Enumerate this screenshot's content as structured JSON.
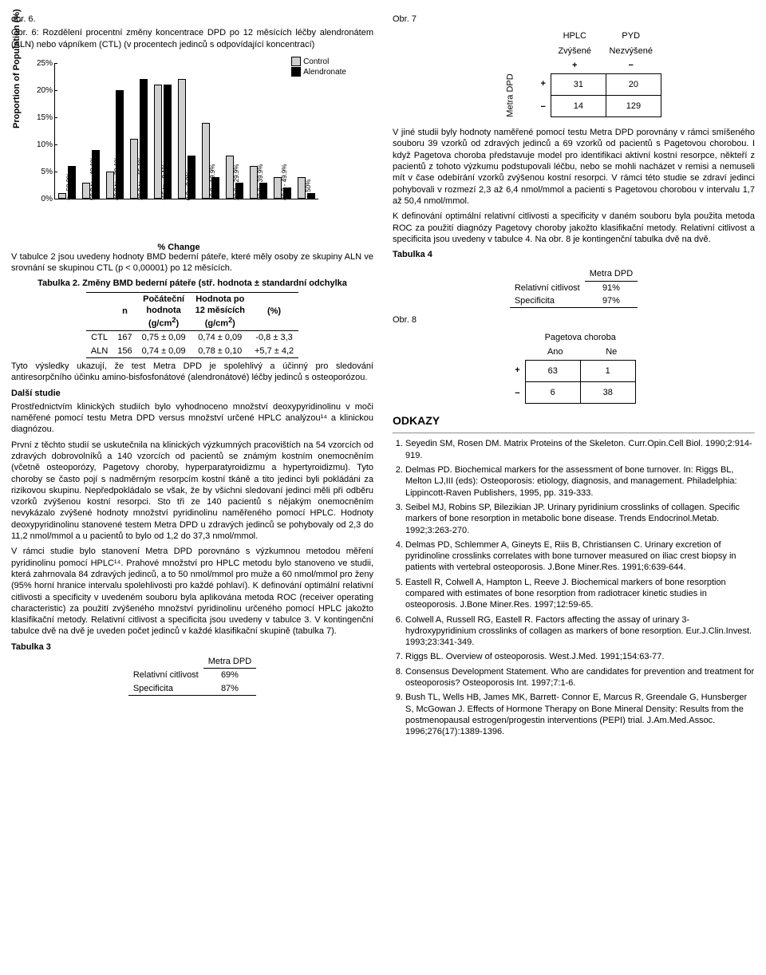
{
  "left": {
    "fig6_label": "obr. 6.",
    "fig6_caption": "Obr. 6: Rozdělení procentní změny koncentrace DPD po 12 měsících léčby alendronátem (ALN) nebo vápníkem (CTL) (v procentech jedinců s odpovídající koncentrací)",
    "chart": {
      "y_label": "Proportion of Population (%)",
      "x_label": "% Change",
      "legend_ctrl": "Control",
      "legend_aln": "Alendronate",
      "y_ticks": [
        "25%",
        "20%",
        "15%",
        "10%",
        "5%",
        "0%"
      ],
      "y_max": 25,
      "categories": [
        "< −50.0%",
        "50.0 to - 40.1%",
        "40.0 to - 30.1%",
        "30.0 to - 15.1%",
        "-15 to - 0.1%",
        "0.0 - 9.9%",
        "10.0 - 19.9%",
        "20.0 - 29.9%",
        "30.0 - 39.9%",
        "40.0 - 49.9%",
        "≥ 50%"
      ],
      "control": [
        1,
        3,
        5,
        11,
        21,
        22,
        14,
        8,
        6,
        4,
        4
      ],
      "alendronate": [
        6,
        9,
        20,
        22,
        21,
        8,
        4,
        3,
        3,
        2,
        1
      ]
    },
    "para_tab2_intro": "V tabulce 2 jsou uvedeny hodnoty BMD bederní páteře, které měly osoby ze skupiny ALN ve srovnání se skupinou CTL (p < 0,00001) po 12 měsících.",
    "tab2_title": "Tabulka 2. Změny BMD bederní páteře (stř. hodnota ± standardní odchylka",
    "tab2": {
      "head": [
        "",
        "n",
        "Počáteční hodnota (g/cm²)",
        "Hodnota po 12 měsících (g/cm²)",
        "(%)"
      ],
      "rows": [
        [
          "CTL",
          "167",
          "0,75 ± 0,09",
          "0,74 ± 0,09",
          "-0,8 ± 3,3"
        ],
        [
          "ALN",
          "156",
          "0,74 ± 0,09",
          "0,78 ± 0,10",
          "+5,7 ± 4,2"
        ]
      ]
    },
    "para_after_tab2": "Tyto výsledky ukazují, že test Metra DPD je spolehlivý a účinný pro sledování antiresorpčního účinku amino-bisfosfonátové (alendronátové) léčby jedinců s osteoporózou.",
    "h_dalsi": "Další studie",
    "para_dalsi_1": "Prostřednictvím klinických studiích bylo vyhodnoceno množství deoxypyridinolinu v moči naměřené pomocí testu Metra DPD versus množství určené HPLC analýzou¹⁴ a klinickou diagnózou.",
    "para_dalsi_2": "První z těchto studií se uskutečnila na klinických výzkumných pracovištích na 54 vzorcích od zdravých dobrovolníků a 140 vzorcích od pacientů se známým kostním onemocněním (včetně osteoporózy, Pagetovy choroby, hyperparatyroidizmu a hypertyroidizmu). Tyto choroby se často pojí s nadměrným resorpcím kostní tkáně a tito jedinci byli pokládáni za rizikovou skupinu. Nepředpokládalo se však, že by všichni sledovaní jedinci měli při odběru vzorků zvýšenou kostní resorpci. Sto tři ze 140 pacientů s nějakým onemocněním nevykázalo zvýšené hodnoty množství pyridinolinu naměřeného pomocí HPLC. Hodnoty deoxypyridinolinu stanovené testem Metra DPD u zdravých jedinců se pohybovaly od 2,3 do 11,2 nmol/mmol a u pacientů to bylo od 1,2 do 37,3 nmol/mmol.",
    "para_dalsi_3": "V rámci studie bylo stanovení Metra DPD porovnáno s výzkumnou metodou měření pyridinolinu pomocí HPLC¹⁴. Prahové množství pro HPLC metodu bylo stanoveno ve studii, která zahrnovala 84 zdravých jedinců, a to 50 nmol/mmol pro muže a 60 nmol/mmol pro ženy (95% horní hranice intervalu spolehlivosti pro každé pohlaví). K definování optimální relativní citlivosti a specificity v uvedeném souboru byla aplikována metoda ROC (receiver operating characteristic) za použití zvýšeného množství pyridinolinu určeného pomocí HPLC jakožto klasifikační metody. Relativní citlivost a specificita jsou uvedeny v tabulce 3. V kontingenční tabulce dvě na dvě je uveden počet jedinců v každé klasifikační skupině (tabulka 7).",
    "tab3_title": "Tabulka 3",
    "tab3": {
      "h": "Metra DPD",
      "rows": [
        [
          "Relativní citlivost",
          "69%"
        ],
        [
          "Specificita",
          "87%"
        ]
      ]
    }
  },
  "right": {
    "fig7_label": "Obr. 7",
    "matrix7": {
      "col_labels": [
        "HPLC",
        "PYD"
      ],
      "col_sub": [
        "Zvýšené",
        "Nezvýšené"
      ],
      "col_sign": [
        "+",
        "−"
      ],
      "row_label": "Metra DPD",
      "rows": [
        [
          "+",
          "31",
          "20"
        ],
        [
          "−",
          "14",
          "129"
        ]
      ]
    },
    "para_right_1": "V jiné studii byly hodnoty naměřené pomocí testu Metra DPD porovnány v rámci smíšeného souboru 39 vzorků od zdravých jedinců a 69 vzorků od pacientů s Pagetovou chorobou. I když Pagetova choroba představuje model pro identifikaci aktivní kostní resorpce, někteří z pacientů z tohoto výzkumu podstupovali léčbu, nebo se mohli nacházet v remisi a nemuseli mít v čase odebírání vzorků zvýšenou kostní resorpci. V rámci této studie se zdraví jedinci pohybovali v rozmezí 2,3 až 6,4 nmol/mmol a pacienti s Pagetovou chorobou v intervalu 1,7 až 50,4 nmol/mmol.",
    "para_right_2": "K definování optimální relativní citlivosti a specificity v daném souboru byla použita metoda ROC za použití diagnózy Pagetovy choroby jakožto klasifikační metody. Relativní citlivost a specificita jsou uvedeny v tabulce 4. Na obr. 8 je kontingenční tabulka dvě na dvě.",
    "tab4_title": "Tabulka 4",
    "tab4": {
      "h": "Metra DPD",
      "rows": [
        [
          "Relativní citlivost",
          "91%"
        ],
        [
          "Specificita",
          "97%"
        ]
      ]
    },
    "fig8_label": "Obr. 8",
    "matrix8": {
      "title": "Pagetova choroba",
      "col_labels": [
        "Ano",
        "Ne"
      ],
      "rows": [
        [
          "+",
          "63",
          "1"
        ],
        [
          "−",
          "6",
          "38"
        ]
      ]
    },
    "refs_h": "ODKAZY",
    "refs": [
      "Seyedin SM, Rosen DM. Matrix Proteins of the Skeleton. Curr.Opin.Cell Biol. 1990;2:914-919.",
      "Delmas PD. Biochemical markers for the assessment of bone turnover. In: Riggs BL, Melton LJ,III (eds): Osteoporosis: etiology, diagnosis, and management. Philadelphia: Lippincott-Raven Publishers, 1995, pp. 319-333.",
      "Seibel MJ, Robins SP, Bilezikian JP. Urinary pyridinium crosslinks of collagen. Specific markers of bone resorption in metabolic bone disease. Trends Endocrinol.Metab. 1992;3:263-270.",
      "Delmas PD, Schlemmer A, Gineyts E, Riis B, Christiansen C. Urinary excretion of pyridinoline crosslinks correlates with bone turnover measured on iliac crest biopsy in patients with vertebral osteoporosis. J.Bone Miner.Res. 1991;6:639-644.",
      "Eastell R, Colwell A, Hampton L, Reeve J. Biochemical markers of bone resorption compared with estimates of bone resorption from radiotracer kinetic studies in osteoporosis. J.Bone Miner.Res. 1997;12:59-65.",
      "Colwell A, Russell RG, Eastell R. Factors affecting the assay of urinary 3-hydroxypyridinium crosslinks of collagen as markers of bone resorption. Eur.J.Clin.Invest. 1993;23:341-349.",
      "Riggs BL. Overview of osteoporosis. West.J.Med. 1991;154:63-77.",
      "Consensus Development Statement. Who are candidates for prevention and treatment for osteoporosis? Osteoporosis Int. 1997;7:1-6.",
      "Bush TL, Wells HB, James MK, Barrett- Connor E, Marcus R, Greendale G, Hunsberger S, McGowan J. Effects of Hormone Therapy on Bone Mineral Density: Results from the postmenopausal estrogen/progestin interventions (PEPI) trial. J.Am.Med.Assoc. 1996;276(17):1389-1396."
    ]
  }
}
